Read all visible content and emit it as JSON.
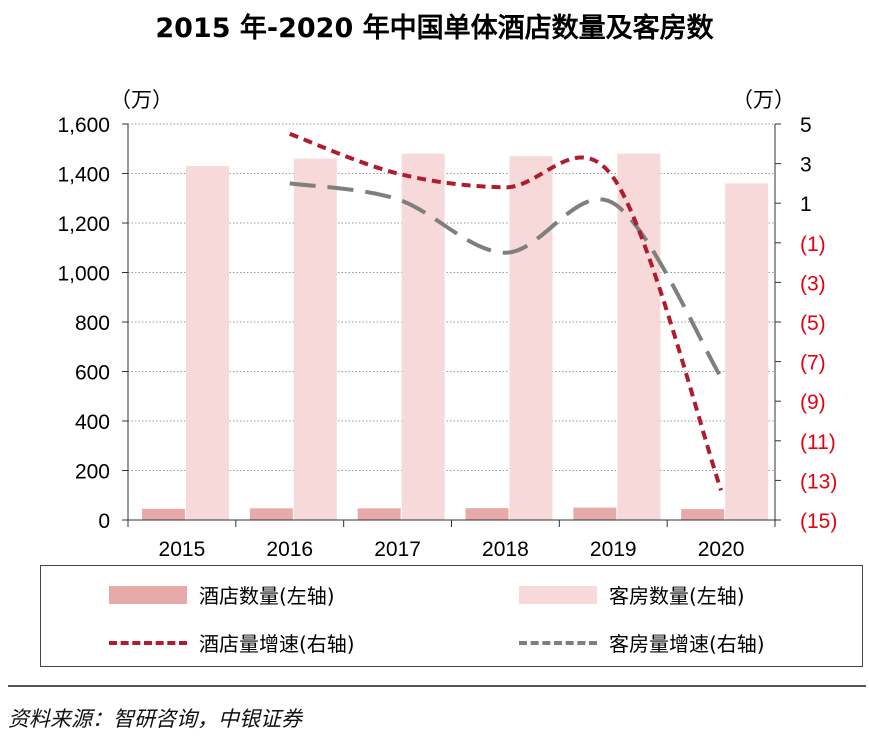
{
  "title": "2015 年-2020 年中国单体酒店数量及客房数",
  "source": "资料来源：智研咨询，中银证券",
  "colors": {
    "hotel_bar": "#e8a9a9",
    "room_bar": "#f6d9d8",
    "hotel_line": "#b01c2e",
    "room_line": "#7f7f7f",
    "right_tick": "#e60012"
  },
  "chart_data": {
    "type": "bar",
    "categories": [
      "2015",
      "2016",
      "2017",
      "2018",
      "2019",
      "2020"
    ],
    "left_axis": {
      "unit": "（万）",
      "ylim": [
        0,
        1600
      ],
      "ticks": [
        "0",
        "200",
        "400",
        "600",
        "800",
        "1,000",
        "1,200",
        "1,400",
        "1,600"
      ]
    },
    "right_axis": {
      "unit": "（万）",
      "ylim": [
        -15,
        5
      ],
      "ticks": [
        "(15)",
        "(13)",
        "(11)",
        "(9)",
        "(7)",
        "(5)",
        "(3)",
        "(1)",
        "1",
        "3",
        "5"
      ]
    },
    "grid": true,
    "legend_placement": "bottom",
    "series": [
      {
        "name": "酒店数量(左轴)",
        "type": "bar",
        "axis": "left",
        "values": [
          45,
          47,
          47,
          48,
          50,
          44
        ]
      },
      {
        "name": "客房数量(左轴)",
        "type": "bar",
        "axis": "left",
        "values": [
          1430,
          1460,
          1480,
          1470,
          1480,
          1360
        ]
      },
      {
        "name": "酒店量增速(右轴)",
        "type": "line",
        "axis": "right",
        "values": [
          null,
          4.5,
          2.5,
          1.8,
          2.3,
          -13.5
        ]
      },
      {
        "name": "客房量增速(右轴)",
        "type": "line",
        "axis": "right",
        "values": [
          null,
          2.0,
          1.2,
          -1.5,
          1.0,
          -7.8
        ]
      }
    ]
  }
}
